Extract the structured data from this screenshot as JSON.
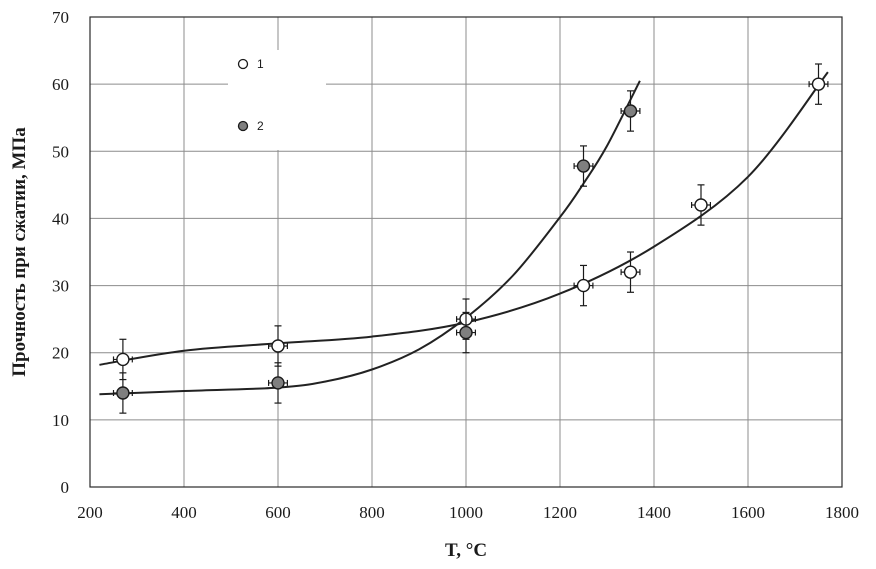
{
  "chart_data": {
    "type": "scatter",
    "xlabel": "T, °C",
    "ylabel": "Прочность при сжатии, МПа",
    "xlim": [
      200,
      1800
    ],
    "ylim": [
      0,
      70
    ],
    "xticks": [
      "200",
      "400",
      "600",
      "800",
      "1000",
      "1200",
      "1400",
      "1600",
      "1800"
    ],
    "yticks": [
      "0",
      "10",
      "20",
      "30",
      "40",
      "50",
      "60",
      "70"
    ],
    "grid": true,
    "legend_position": "top-left",
    "series": [
      {
        "name": "1",
        "marker": "open-circle",
        "color": "#ffffff",
        "x": [
          270,
          600,
          1000,
          1250,
          1350,
          1500,
          1750
        ],
        "y": [
          19,
          21,
          25,
          30,
          32,
          42,
          60
        ],
        "yerr": [
          3,
          3,
          3,
          3,
          3,
          3,
          3
        ],
        "xerr": [
          20,
          20,
          20,
          20,
          20,
          20,
          20
        ],
        "fit_x": [
          220,
          400,
          600,
          800,
          1000,
          1200,
          1400,
          1600,
          1770
        ],
        "fit_y": [
          18.2,
          20.3,
          21.4,
          22.4,
          24.5,
          28.8,
          35.8,
          46.2,
          61.8
        ]
      },
      {
        "name": "2",
        "marker": "filled-circle",
        "color": "#7f7f7f",
        "x": [
          270,
          600,
          1000,
          1250,
          1350
        ],
        "y": [
          14,
          15.5,
          23,
          47.8,
          56
        ],
        "yerr": [
          3,
          3,
          3,
          3,
          3
        ],
        "xerr": [
          20,
          20,
          20,
          20,
          20
        ],
        "fit_x": [
          220,
          400,
          600,
          700,
          800,
          900,
          1000,
          1100,
          1200,
          1250,
          1300,
          1370
        ],
        "fit_y": [
          13.8,
          14.3,
          14.8,
          15.7,
          17.5,
          20.5,
          25.2,
          31.5,
          40.2,
          45.2,
          50.8,
          60.5
        ]
      }
    ]
  }
}
